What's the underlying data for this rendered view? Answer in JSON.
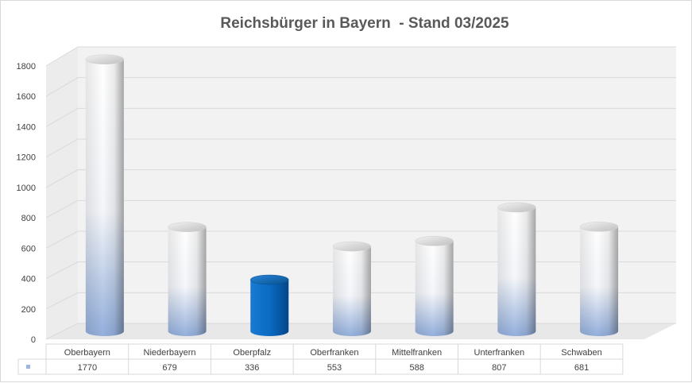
{
  "chart_data": {
    "type": "bar",
    "style": "3d-cylinder",
    "title": "Reichsbürger in Bayern  - Stand 03/2025",
    "categories": [
      "Oberbayern",
      "Niederbayern",
      "Oberpfalz",
      "Oberfranken",
      "Mittelfranken",
      "Unterfranken",
      "Schwaben"
    ],
    "values": [
      1770,
      679,
      336,
      553,
      588,
      807,
      681
    ],
    "highlighted_category": "Oberpfalz",
    "ylim": [
      0,
      1800
    ],
    "yticks": [
      0,
      200,
      400,
      600,
      800,
      1000,
      1200,
      1400,
      1600,
      1800
    ],
    "grid": true,
    "data_table": true,
    "colors": {
      "bar_top": "#ffffff",
      "bar_bottom": "#9db6df",
      "highlight": "#0a6bc1",
      "gridline": "#d9d9d9",
      "wall": "#f2f2f2"
    }
  }
}
